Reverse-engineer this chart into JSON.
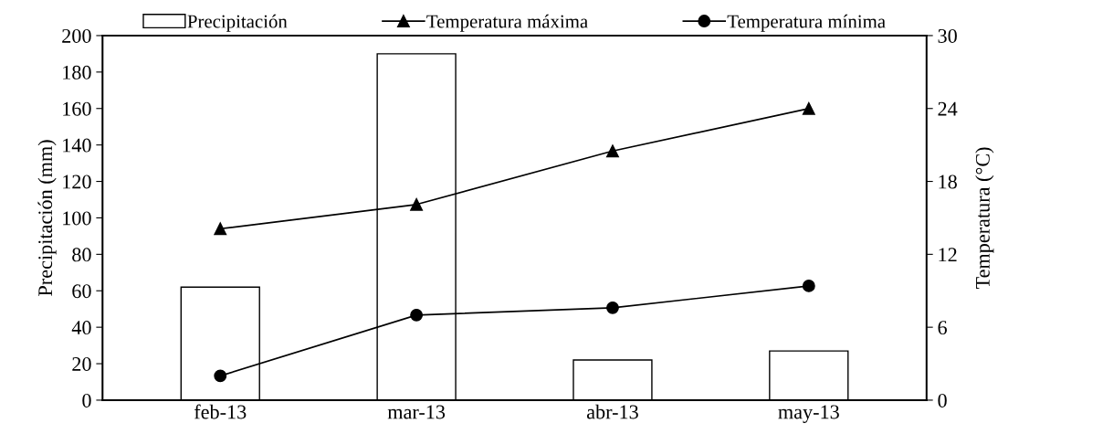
{
  "chart_data": {
    "type": "bar",
    "categories": [
      "feb-13",
      "mar-13",
      "abr-13",
      "may-13"
    ],
    "ylabel": "Precipitación (mm)",
    "y2label": "Temperatura (°C)",
    "series": [
      {
        "name": "Precipitación",
        "color": "#ffffff",
        "values": [
          62,
          190,
          22,
          27
        ]
      },
      {
        "name": "Temperatura máxima",
        "type": "line",
        "axis": "y2",
        "marker": "triangle",
        "color": "#000000",
        "values": [
          14.1,
          16.1,
          20.5,
          24.0
        ]
      },
      {
        "name": "Temperatura mínima",
        "type": "line",
        "axis": "y2",
        "marker": "circle",
        "color": "#000000",
        "values": [
          2.0,
          7.0,
          7.6,
          9.4
        ]
      }
    ],
    "ylim": [
      0,
      200
    ],
    "yticks": [
      0,
      20,
      40,
      60,
      80,
      100,
      120,
      140,
      160,
      180,
      200
    ],
    "y2lim": [
      0,
      30
    ],
    "y2ticks": [
      0,
      6,
      12,
      18,
      24,
      30
    ],
    "grid": false,
    "legend": "top"
  }
}
